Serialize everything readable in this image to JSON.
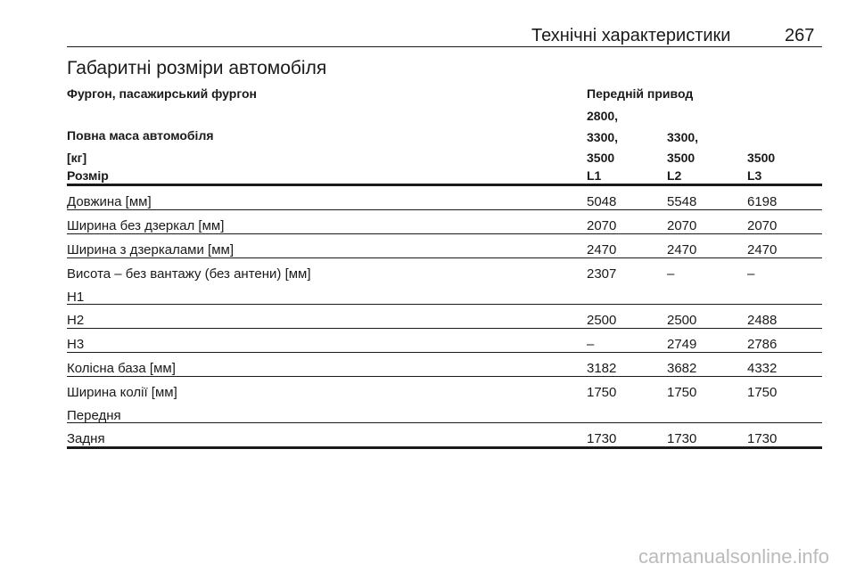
{
  "header": {
    "section": "Технічні характеристики",
    "page": "267"
  },
  "title": "Габаритні розміри автомобіля",
  "table": {
    "group": "Фургон, пасажирський фургон",
    "drive": "Передній привод",
    "mass_label": [
      "Повна маса автомобіля",
      "[кг]"
    ],
    "mass": [
      [
        "2800,",
        "3300,",
        "3500"
      ],
      [
        "3300,",
        "3500"
      ],
      [
        "3500"
      ]
    ],
    "size_label": "Розмір",
    "sizes": [
      "L1",
      "L2",
      "L3"
    ],
    "rows": [
      {
        "label": [
          "Довжина [мм]"
        ],
        "values": [
          "5048",
          "5548",
          "6198"
        ]
      },
      {
        "label": [
          "Ширина без дзеркал [мм]"
        ],
        "values": [
          "2070",
          "2070",
          "2070"
        ]
      },
      {
        "label": [
          "Ширина з дзеркалами [мм]"
        ],
        "values": [
          "2470",
          "2470",
          "2470"
        ]
      },
      {
        "label": [
          "Висота – без вантажу (без антени) [мм]",
          "H1"
        ],
        "values": [
          "2307",
          "–",
          "–"
        ]
      },
      {
        "label": [
          "H2"
        ],
        "values": [
          "2500",
          "2500",
          "2488"
        ]
      },
      {
        "label": [
          "H3"
        ],
        "values": [
          "–",
          "2749",
          "2786"
        ]
      },
      {
        "label": [
          "Колісна база [мм]"
        ],
        "values": [
          "3182",
          "3682",
          "4332"
        ]
      },
      {
        "label": [
          "Ширина колії [мм]",
          "Передня"
        ],
        "values": [
          "1750",
          "1750",
          "1750"
        ]
      },
      {
        "label": [
          "Задня"
        ],
        "values": [
          "1730",
          "1730",
          "1730"
        ]
      }
    ]
  },
  "watermark": "carmanualsonline.info"
}
